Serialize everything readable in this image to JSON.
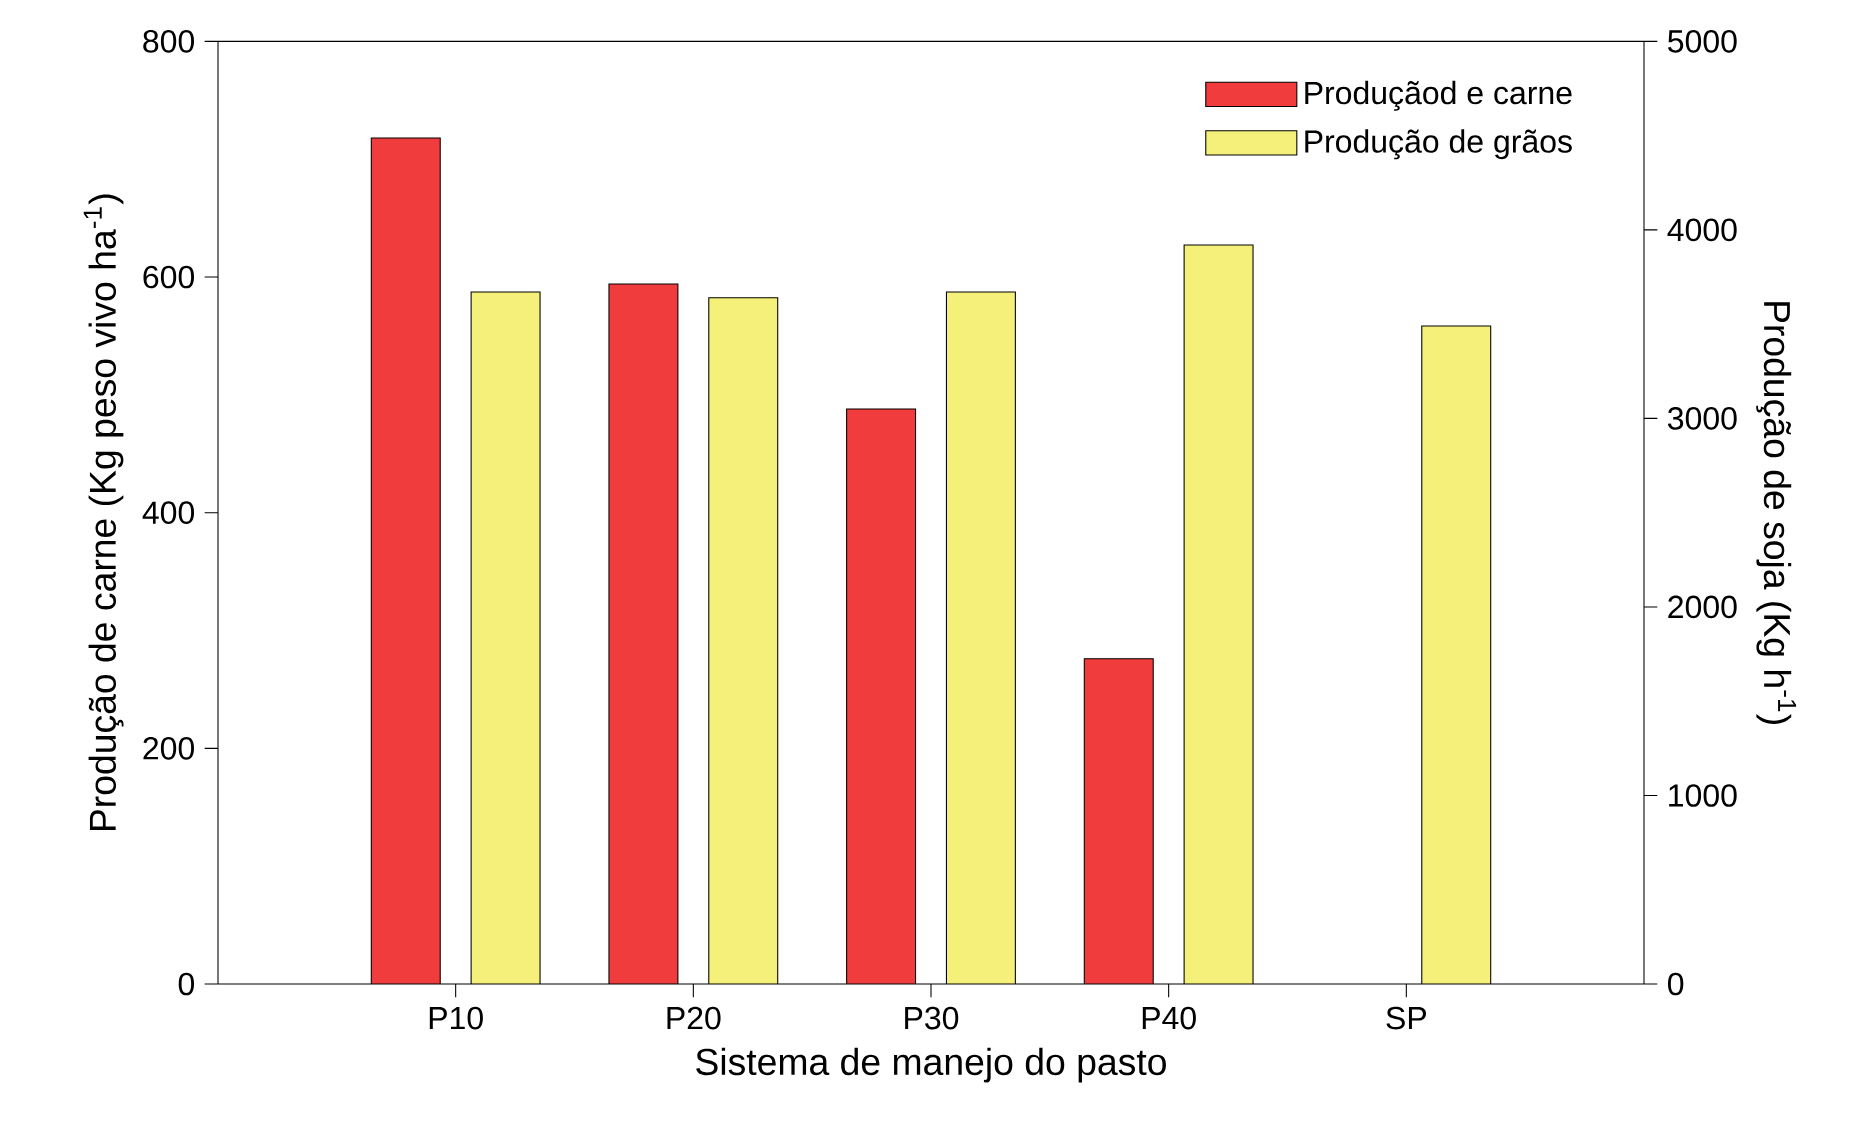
{
  "chart_data": {
    "type": "bar",
    "xlabel": "Sistema de manejo do pasto",
    "ylabel": "Produção de carne (Kg peso vivo ha$^{-1}$)",
    "y2label": "Produção de soja (Kg h$^{-1}$)",
    "categories": [
      "P10",
      "P20",
      "P30",
      "P40",
      "SP"
    ],
    "series": [
      {
        "name": "Produçãod e carne",
        "color": "#f03c3c",
        "values": [
          718,
          594,
          488,
          276,
          null
        ]
      },
      {
        "name": "Produção de grãos",
        "color": "#f5f07a",
        "axis": "y2",
        "values": [
          3670,
          3640,
          3670,
          3920,
          3490
        ]
      }
    ],
    "ylim": [
      0,
      800
    ],
    "yticks": [
      0,
      200,
      400,
      600,
      800
    ],
    "y2lim": [
      0,
      5000
    ],
    "y2ticks": [
      0,
      1000,
      2000,
      3000,
      4000,
      5000
    ],
    "legend": "top right"
  }
}
